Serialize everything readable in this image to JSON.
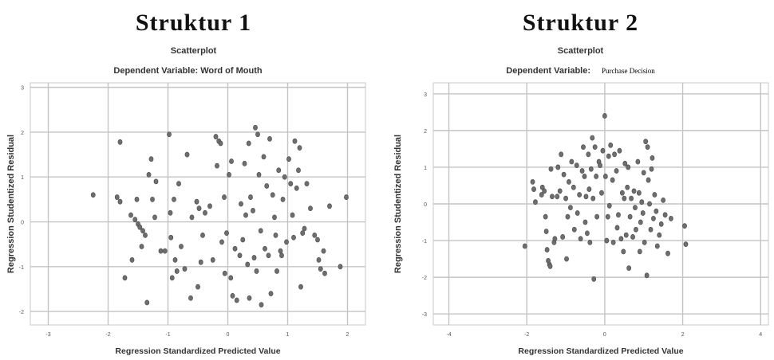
{
  "chart_data": [
    {
      "type": "scatter",
      "panel_title": "Struktur 1",
      "title": "Scatterplot",
      "subtitle": "Dependent Variable: Word of Mouth",
      "subtitle_value": "",
      "xlabel": "Regression Standardized Predicted Value",
      "ylabel": "Regression Studentized Residual",
      "xlim": [
        -3.3,
        2.3
      ],
      "ylim": [
        -2.3,
        3.1
      ],
      "xticks": [
        -3,
        -2,
        -1,
        0,
        1,
        2
      ],
      "yticks": [
        -2,
        -1,
        0,
        1,
        2,
        3
      ],
      "grid": true,
      "points": [
        [
          -2.25,
          0.6
        ],
        [
          -1.85,
          0.55
        ],
        [
          -1.8,
          0.45
        ],
        [
          -1.8,
          1.78
        ],
        [
          -1.72,
          -1.25
        ],
        [
          -1.62,
          0.15
        ],
        [
          -1.6,
          -0.85
        ],
        [
          -1.55,
          0.05
        ],
        [
          -1.52,
          0.5
        ],
        [
          -1.5,
          -0.05
        ],
        [
          -1.47,
          -0.12
        ],
        [
          -1.44,
          -0.55
        ],
        [
          -1.42,
          -0.2
        ],
        [
          -1.38,
          -0.3
        ],
        [
          -1.35,
          -1.8
        ],
        [
          -1.32,
          1.05
        ],
        [
          -1.28,
          1.4
        ],
        [
          -1.26,
          0.5
        ],
        [
          -1.22,
          0.1
        ],
        [
          -1.2,
          0.9
        ],
        [
          -1.12,
          -0.65
        ],
        [
          -1.05,
          -0.65
        ],
        [
          -0.98,
          1.95
        ],
        [
          -0.96,
          0.2
        ],
        [
          -0.95,
          -0.35
        ],
        [
          -0.93,
          -1.25
        ],
        [
          -0.9,
          0.5
        ],
        [
          -0.88,
          -0.85
        ],
        [
          -0.85,
          -1.1
        ],
        [
          -0.82,
          0.85
        ],
        [
          -0.78,
          -0.55
        ],
        [
          -0.72,
          -1.05
        ],
        [
          -0.68,
          1.5
        ],
        [
          -0.62,
          -1.7
        ],
        [
          -0.6,
          0.1
        ],
        [
          -0.52,
          0.45
        ],
        [
          -0.5,
          -1.45
        ],
        [
          -0.48,
          0.3
        ],
        [
          -0.45,
          -0.9
        ],
        [
          -0.42,
          -0.3
        ],
        [
          -0.38,
          0.2
        ],
        [
          -0.3,
          0.35
        ],
        [
          -0.25,
          -0.85
        ],
        [
          -0.2,
          1.9
        ],
        [
          -0.18,
          1.25
        ],
        [
          -0.15,
          1.8
        ],
        [
          -0.12,
          1.75
        ],
        [
          -0.1,
          -0.45
        ],
        [
          -0.06,
          0.55
        ],
        [
          -0.05,
          -1.15
        ],
        [
          -0.02,
          -0.25
        ],
        [
          0.02,
          1.05
        ],
        [
          0.05,
          -1.25
        ],
        [
          0.06,
          1.35
        ],
        [
          0.08,
          -1.65
        ],
        [
          0.12,
          -0.6
        ],
        [
          0.15,
          -1.75
        ],
        [
          0.2,
          -0.75
        ],
        [
          0.22,
          0.4
        ],
        [
          0.25,
          -0.4
        ],
        [
          0.28,
          1.3
        ],
        [
          0.3,
          0.15
        ],
        [
          0.33,
          -0.95
        ],
        [
          0.35,
          1.75
        ],
        [
          0.36,
          -1.7
        ],
        [
          0.38,
          0.55
        ],
        [
          0.42,
          0.25
        ],
        [
          0.44,
          -0.8
        ],
        [
          0.46,
          2.1
        ],
        [
          0.48,
          -1.1
        ],
        [
          0.5,
          1.95
        ],
        [
          0.52,
          1.05
        ],
        [
          0.55,
          -0.2
        ],
        [
          0.56,
          -1.85
        ],
        [
          0.6,
          1.45
        ],
        [
          0.62,
          -0.6
        ],
        [
          0.65,
          0.8
        ],
        [
          0.68,
          -0.75
        ],
        [
          0.7,
          1.85
        ],
        [
          0.72,
          -1.6
        ],
        [
          0.75,
          0.6
        ],
        [
          0.78,
          0.1
        ],
        [
          0.8,
          -0.3
        ],
        [
          0.82,
          -1.1
        ],
        [
          0.85,
          1.15
        ],
        [
          0.88,
          -0.65
        ],
        [
          0.9,
          -0.75
        ],
        [
          0.92,
          0.5
        ],
        [
          0.95,
          1.0
        ],
        [
          0.98,
          -0.45
        ],
        [
          1.02,
          1.4
        ],
        [
          1.05,
          0.85
        ],
        [
          1.08,
          0.15
        ],
        [
          1.1,
          -0.35
        ],
        [
          1.12,
          1.8
        ],
        [
          1.15,
          0.75
        ],
        [
          1.18,
          1.15
        ],
        [
          1.2,
          1.65
        ],
        [
          1.22,
          -1.45
        ],
        [
          1.25,
          -0.25
        ],
        [
          1.28,
          -0.15
        ],
        [
          1.32,
          0.85
        ],
        [
          1.38,
          0.3
        ],
        [
          1.45,
          -0.3
        ],
        [
          1.5,
          -0.4
        ],
        [
          1.52,
          -0.85
        ],
        [
          1.55,
          -1.05
        ],
        [
          1.6,
          -0.65
        ],
        [
          1.62,
          -1.15
        ],
        [
          1.7,
          0.35
        ],
        [
          1.88,
          -1.0
        ],
        [
          1.98,
          0.55
        ]
      ]
    },
    {
      "type": "scatter",
      "panel_title": "Struktur 2",
      "title": "Scatterplot",
      "subtitle": "Dependent Variable:",
      "subtitle_value": "Purchase Decision",
      "xlabel": "Regression Standardized Predicted Value",
      "ylabel": "Regression Studentized Residual",
      "xlim": [
        -4.4,
        4.2
      ],
      "ylim": [
        -3.3,
        3.3
      ],
      "xticks": [
        -4,
        -2,
        0,
        2,
        4
      ],
      "yticks": [
        -3,
        -2,
        -1,
        0,
        1,
        2,
        3
      ],
      "grid": true,
      "points": [
        [
          -2.05,
          -1.15
        ],
        [
          -1.85,
          0.6
        ],
        [
          -1.82,
          0.4
        ],
        [
          -1.78,
          0.05
        ],
        [
          -1.62,
          0.25
        ],
        [
          -1.6,
          0.45
        ],
        [
          -1.55,
          0.35
        ],
        [
          -1.52,
          -0.35
        ],
        [
          -1.5,
          -0.75
        ],
        [
          -1.48,
          -1.25
        ],
        [
          -1.45,
          -1.55
        ],
        [
          -1.42,
          -1.65
        ],
        [
          -1.4,
          -1.7
        ],
        [
          -1.38,
          0.95
        ],
        [
          -1.35,
          0.2
        ],
        [
          -1.3,
          -1.05
        ],
        [
          -1.28,
          -0.95
        ],
        [
          -1.22,
          0.2
        ],
        [
          -1.2,
          1.0
        ],
        [
          -1.15,
          0.35
        ],
        [
          -1.12,
          1.35
        ],
        [
          -1.08,
          -0.9
        ],
        [
          -1.05,
          0.8
        ],
        [
          -1.0,
          0.15
        ],
        [
          -0.98,
          -1.5
        ],
        [
          -0.95,
          -0.35
        ],
        [
          -0.92,
          0.6
        ],
        [
          -0.88,
          -0.1
        ],
        [
          -0.85,
          1.15
        ],
        [
          -0.8,
          0.45
        ],
        [
          -0.78,
          -0.7
        ],
        [
          -0.72,
          1.05
        ],
        [
          -0.7,
          -0.25
        ],
        [
          -0.65,
          0.25
        ],
        [
          -0.62,
          -0.95
        ],
        [
          -0.58,
          0.9
        ],
        [
          -0.55,
          1.55
        ],
        [
          -0.52,
          0.75
        ],
        [
          -0.5,
          -0.5
        ],
        [
          -0.48,
          0.2
        ],
        [
          -0.45,
          -0.8
        ],
        [
          -0.42,
          1.35
        ],
        [
          -0.4,
          0.4
        ],
        [
          -0.38,
          -1.05
        ],
        [
          -0.35,
          0.95
        ],
        [
          -0.32,
          1.8
        ],
        [
          -0.3,
          0.15
        ],
        [
          -0.28,
          -2.05
        ],
        [
          -0.25,
          1.55
        ],
        [
          -0.22,
          0.75
        ],
        [
          -0.2,
          -0.35
        ],
        [
          -0.15,
          1.15
        ],
        [
          -0.12,
          1.05
        ],
        [
          -0.08,
          0.3
        ],
        [
          -0.05,
          1.45
        ],
        [
          0.0,
          2.4
        ],
        [
          0.02,
          0.75
        ],
        [
          0.05,
          -1.0
        ],
        [
          0.08,
          -0.35
        ],
        [
          0.1,
          1.3
        ],
        [
          0.12,
          -0.05
        ],
        [
          0.15,
          1.6
        ],
        [
          0.2,
          0.65
        ],
        [
          0.22,
          -1.05
        ],
        [
          0.25,
          1.35
        ],
        [
          0.3,
          0.9
        ],
        [
          0.32,
          -0.65
        ],
        [
          0.35,
          -0.3
        ],
        [
          0.38,
          1.45
        ],
        [
          0.42,
          -0.95
        ],
        [
          0.45,
          0.3
        ],
        [
          0.48,
          -1.3
        ],
        [
          0.5,
          0.15
        ],
        [
          0.52,
          1.1
        ],
        [
          0.55,
          -0.85
        ],
        [
          0.58,
          0.45
        ],
        [
          0.6,
          1.0
        ],
        [
          0.62,
          -1.75
        ],
        [
          0.65,
          -0.35
        ],
        [
          0.68,
          0.15
        ],
        [
          0.72,
          -0.9
        ],
        [
          0.75,
          0.35
        ],
        [
          0.78,
          -0.1
        ],
        [
          0.8,
          -0.7
        ],
        [
          0.85,
          1.15
        ],
        [
          0.88,
          0.3
        ],
        [
          0.9,
          -1.3
        ],
        [
          0.92,
          -0.5
        ],
        [
          0.95,
          0.05
        ],
        [
          0.98,
          -0.25
        ],
        [
          1.0,
          0.85
        ],
        [
          1.02,
          -1.05
        ],
        [
          1.05,
          1.7
        ],
        [
          1.08,
          -1.95
        ],
        [
          1.1,
          1.55
        ],
        [
          1.12,
          0.65
        ],
        [
          1.15,
          0.0
        ],
        [
          1.18,
          -0.7
        ],
        [
          1.2,
          0.95
        ],
        [
          1.22,
          1.25
        ],
        [
          1.25,
          -0.4
        ],
        [
          1.28,
          0.25
        ],
        [
          1.32,
          -0.2
        ],
        [
          1.35,
          -1.15
        ],
        [
          1.4,
          -0.85
        ],
        [
          1.45,
          -0.55
        ],
        [
          1.5,
          0.1
        ],
        [
          1.55,
          -0.3
        ],
        [
          1.62,
          -1.35
        ],
        [
          1.7,
          -0.4
        ],
        [
          2.05,
          -0.6
        ],
        [
          2.08,
          -1.1
        ]
      ]
    }
  ]
}
